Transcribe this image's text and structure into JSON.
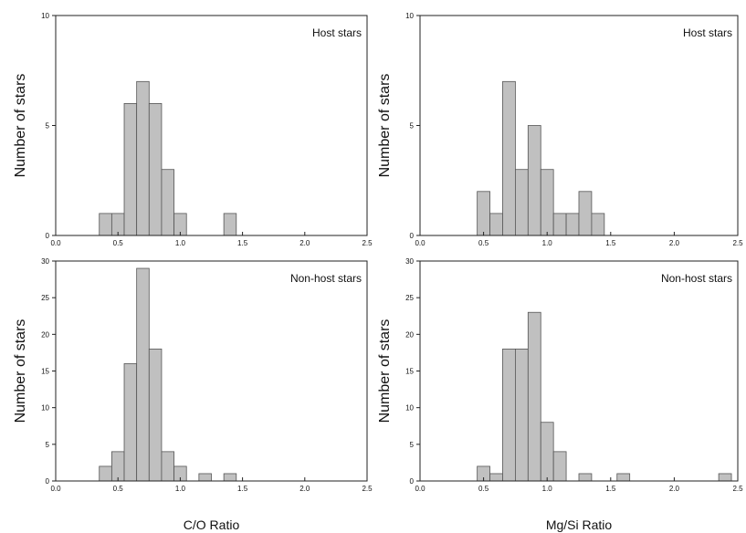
{
  "colors": {
    "bar_fill": "#c0c0c0",
    "bar_edge": "#555555",
    "axis": "#222222"
  },
  "chart_data": [
    {
      "id": "co-host",
      "type": "bar",
      "title": "Host stars",
      "xlabel": "",
      "ylabel": "Number of stars",
      "xlim": [
        0,
        2.5
      ],
      "ylim": [
        0,
        10
      ],
      "bin_width": 0.1,
      "xticks": [
        "0.0",
        "0.5",
        "1.0",
        "1.5",
        "2.0",
        "2.5"
      ],
      "yticks": [
        "0",
        "5",
        "10"
      ],
      "bins": [
        [
          0.35,
          1
        ],
        [
          0.45,
          1
        ],
        [
          0.55,
          6
        ],
        [
          0.65,
          7
        ],
        [
          0.75,
          6
        ],
        [
          0.85,
          3
        ],
        [
          0.95,
          1
        ],
        [
          1.35,
          1
        ]
      ]
    },
    {
      "id": "mgsi-host",
      "type": "bar",
      "title": "Host stars",
      "xlabel": "",
      "ylabel": "Number of stars",
      "xlim": [
        0,
        2.5
      ],
      "ylim": [
        0,
        10
      ],
      "bin_width": 0.1,
      "xticks": [
        "0.0",
        "0.5",
        "1.0",
        "1.5",
        "2.0",
        "2.5"
      ],
      "yticks": [
        "0",
        "5",
        "10"
      ],
      "bins": [
        [
          0.45,
          2
        ],
        [
          0.55,
          1
        ],
        [
          0.65,
          7
        ],
        [
          0.75,
          3
        ],
        [
          0.85,
          5
        ],
        [
          0.95,
          3
        ],
        [
          1.05,
          1
        ],
        [
          1.15,
          1
        ],
        [
          1.25,
          2
        ],
        [
          1.35,
          1
        ]
      ]
    },
    {
      "id": "co-nonhost",
      "type": "bar",
      "title": "Non-host stars",
      "xlabel": "C/O Ratio",
      "ylabel": "Number of stars",
      "xlim": [
        0,
        2.5
      ],
      "ylim": [
        0,
        30
      ],
      "bin_width": 0.1,
      "xticks": [
        "0.0",
        "0.5",
        "1.0",
        "1.5",
        "2.0",
        "2.5"
      ],
      "yticks": [
        "0",
        "5",
        "10",
        "15",
        "20",
        "25",
        "30"
      ],
      "bins": [
        [
          0.35,
          2
        ],
        [
          0.45,
          4
        ],
        [
          0.55,
          16
        ],
        [
          0.65,
          29
        ],
        [
          0.75,
          18
        ],
        [
          0.85,
          4
        ],
        [
          0.95,
          2
        ],
        [
          1.15,
          1
        ],
        [
          1.35,
          1
        ]
      ]
    },
    {
      "id": "mgsi-nonhost",
      "type": "bar",
      "title": "Non-host stars",
      "xlabel": "Mg/Si Ratio",
      "ylabel": "Number of stars",
      "xlim": [
        0,
        2.5
      ],
      "ylim": [
        0,
        30
      ],
      "bin_width": 0.1,
      "xticks": [
        "0.0",
        "0.5",
        "1.0",
        "1.5",
        "2.0",
        "2.5"
      ],
      "yticks": [
        "0",
        "5",
        "10",
        "15",
        "20",
        "25",
        "30"
      ],
      "bins": [
        [
          0.45,
          2
        ],
        [
          0.55,
          1
        ],
        [
          0.65,
          18
        ],
        [
          0.75,
          18
        ],
        [
          0.85,
          23
        ],
        [
          0.95,
          8
        ],
        [
          1.05,
          4
        ],
        [
          1.25,
          1
        ],
        [
          1.55,
          1
        ],
        [
          2.35,
          1
        ]
      ]
    }
  ]
}
